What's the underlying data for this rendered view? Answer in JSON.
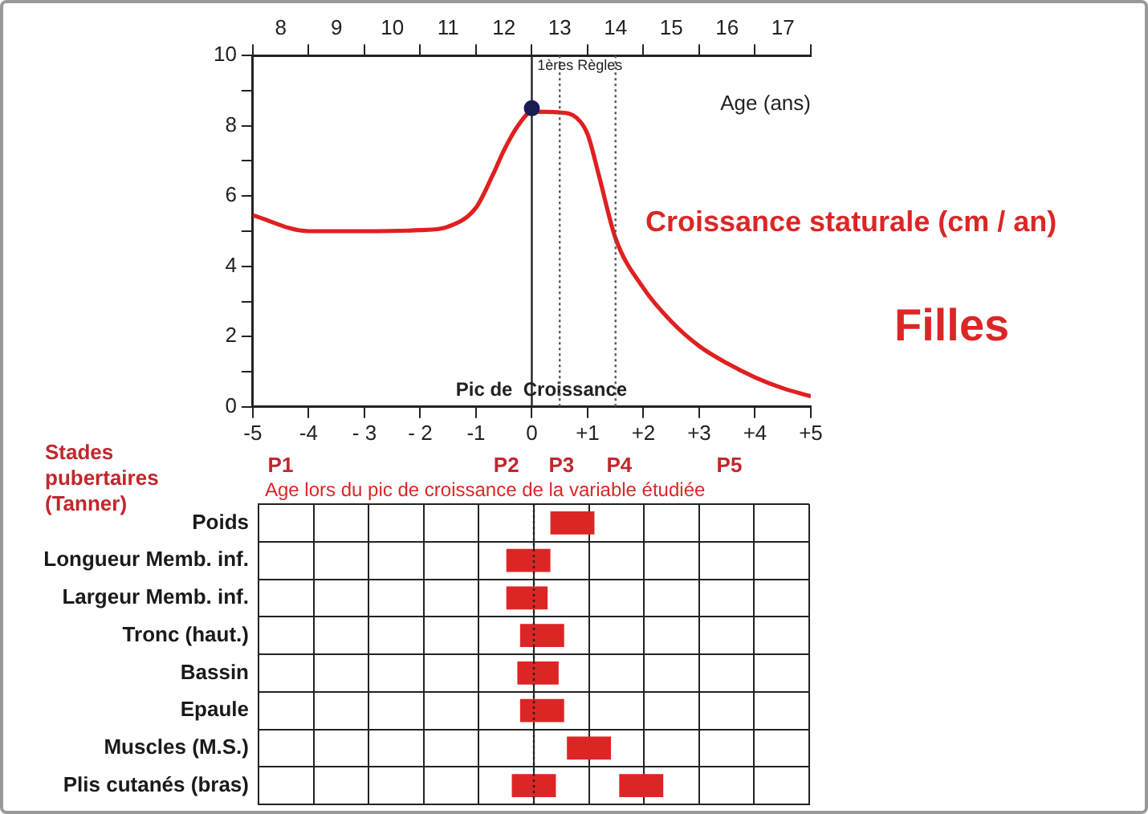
{
  "chart_data": [
    {
      "type": "line",
      "annotations": [
        "Filles"
      ],
      "ylabel": "Croissance staturale (cm / an)",
      "x2label": "Age (ans)",
      "xlim": [
        -5,
        5
      ],
      "xticks": [
        -5,
        -4,
        {
          "value": -3,
          "label": "- 3"
        },
        {
          "value": -2,
          "label": "- 2"
        },
        -1,
        0,
        {
          "value": 1,
          "label": "+1"
        },
        {
          "value": 2,
          "label": "+2"
        },
        {
          "value": 3,
          "label": "+3"
        },
        {
          "value": 4,
          "label": "+4"
        },
        {
          "value": 5,
          "label": "+5"
        }
      ],
      "x2lim": [
        7.5,
        17.5
      ],
      "x2ticks": [
        {
          "value": 7.5,
          "label": null
        },
        8,
        {
          "value": 8.5,
          "label": null
        },
        9,
        {
          "value": 9.5,
          "label": null
        },
        10,
        {
          "value": 10.5,
          "label": null
        },
        11,
        {
          "value": 11.5,
          "label": null
        },
        12,
        {
          "value": 12.5,
          "label": null
        },
        13,
        {
          "value": 13.5,
          "label": null
        },
        14,
        {
          "value": 14.5,
          "label": null
        },
        15,
        {
          "value": 15.5,
          "label": null
        },
        16,
        {
          "value": 16.5,
          "label": null
        },
        17,
        {
          "value": 17.5,
          "label": null
        }
      ],
      "ylim": [
        0,
        10
      ],
      "yticks": [
        0,
        {
          "value": 1,
          "label": null
        },
        2,
        {
          "value": 3,
          "label": null
        },
        4,
        {
          "value": 5,
          "label": null
        },
        6,
        {
          "value": 7,
          "label": null
        },
        8,
        {
          "value": 9,
          "label": null
        },
        10
      ],
      "series": [
        {
          "type": "line",
          "color": "#e02020",
          "marker": "none",
          "x": [
            -5,
            -4,
            -3,
            -2,
            -1.5,
            -1,
            -0.7,
            -0.5,
            -0.25,
            0,
            0.5,
            0.8,
            1,
            1.2,
            1.5,
            2,
            2.5,
            3,
            3.5,
            4,
            4.5,
            5
          ],
          "values": [
            5.45,
            5.0,
            5.0,
            5.03,
            5.13,
            5.67,
            6.6,
            7.3,
            8.0,
            8.4,
            8.38,
            8.23,
            7.76,
            6.6,
            4.8,
            3.38,
            2.43,
            1.73,
            1.24,
            0.84,
            0.53,
            0.3
          ]
        },
        {
          "type": "scatter",
          "color": "#1a1a5e",
          "marker": "circle",
          "x": [
            0
          ],
          "values": [
            8.5
          ]
        }
      ],
      "ref_lines": [
        {
          "axis": "x",
          "value": 0,
          "label": "Pic de  Croissance",
          "color": "#222222",
          "line_style": "solid"
        },
        {
          "axis": "x",
          "value": 0.5,
          "label": "1ères Règles",
          "color": "#555555",
          "line_style": "dotted"
        },
        {
          "axis": "x",
          "value": 1.5,
          "color": "#555555",
          "line_style": "dotted"
        }
      ]
    },
    {
      "type": "bar",
      "orientation": "horizontal",
      "subtitle": "Age lors du pic de croissance de la variable étudiée",
      "categories": [
        "Poids",
        "Longueur Memb. inf.",
        "Largeur Memb. inf.",
        "Tronc (haut.)",
        "Bassin",
        "Epaule",
        "Muscles (M.S.)",
        "Plis cutanés (bras)"
      ],
      "xlim": [
        -5,
        5
      ],
      "xticks": [
        -5,
        -4,
        -3,
        -2,
        -1,
        0,
        1,
        2,
        3,
        4,
        5
      ],
      "tick_labels": "y",
      "grid": true,
      "series": [
        {
          "color": "#dc2626",
          "base": [
            0.3,
            -0.5,
            -0.5,
            -0.25,
            -0.3,
            -0.25,
            0.6,
            -0.4
          ],
          "values": [
            0.8,
            0.8,
            0.75,
            0.8,
            0.75,
            0.8,
            0.8,
            0.8
          ]
        },
        {
          "color": "#dc2626",
          "base": [
            null,
            null,
            null,
            null,
            null,
            null,
            null,
            1.55
          ],
          "values": [
            null,
            null,
            null,
            null,
            null,
            null,
            null,
            0.8
          ]
        }
      ],
      "ref_lines": [
        {
          "axis": "x",
          "value": 0,
          "color": "#222222",
          "line_style": "dotted"
        }
      ],
      "annotations": [
        "Stades pubertaires (Tanner)",
        "P1",
        "P2",
        "P3",
        "P4",
        "P5"
      ]
    }
  ]
}
